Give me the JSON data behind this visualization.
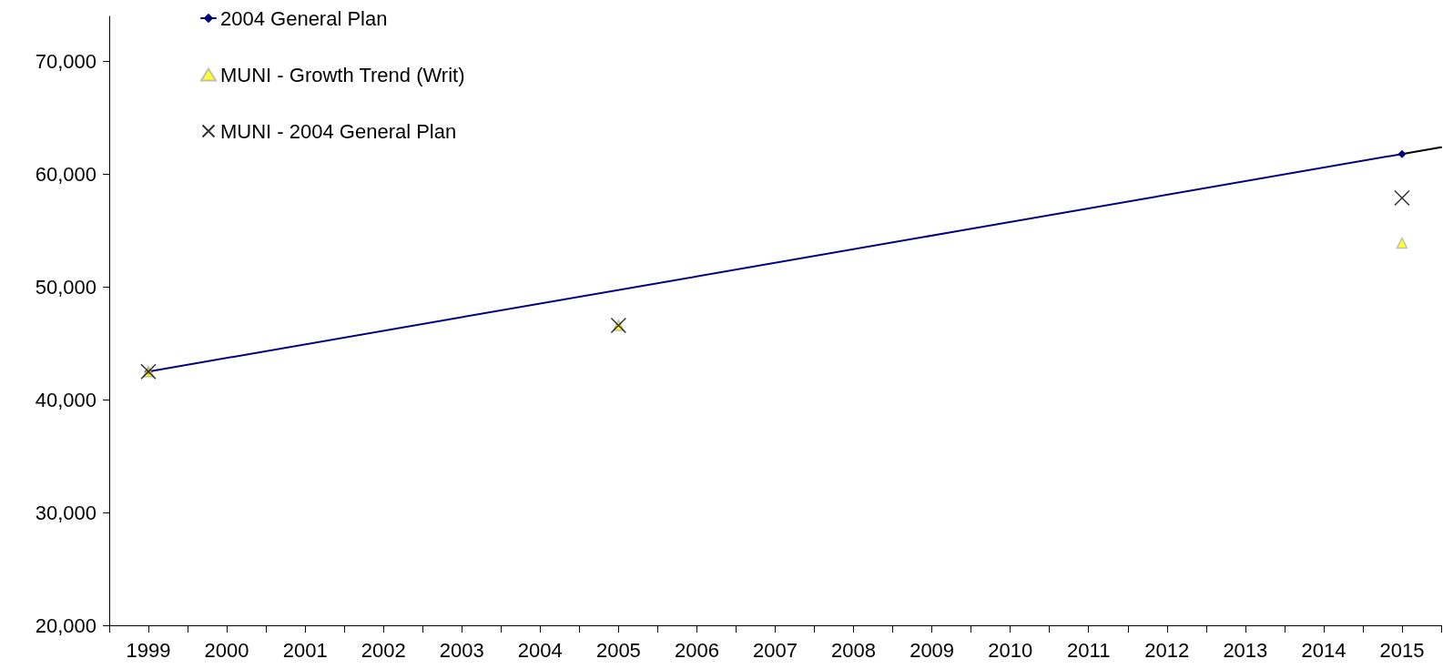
{
  "chart_data": {
    "type": "scatter",
    "xlim": [
      1998.5,
      2015.5
    ],
    "xticks": [
      {
        "value": 1998.5,
        "label": null
      },
      1999,
      {
        "value": 1999.5,
        "label": null
      },
      2000,
      {
        "value": 2000.5,
        "label": null
      },
      2001,
      {
        "value": 2001.5,
        "label": null
      },
      2002,
      {
        "value": 2002.5,
        "label": null
      },
      2003,
      {
        "value": 2003.5,
        "label": null
      },
      2004,
      {
        "value": 2004.5,
        "label": null
      },
      2005,
      {
        "value": 2005.5,
        "label": null
      },
      2006,
      {
        "value": 2006.5,
        "label": null
      },
      2007,
      {
        "value": 2007.5,
        "label": null
      },
      2008,
      {
        "value": 2008.5,
        "label": null
      },
      2009,
      {
        "value": 2009.5,
        "label": null
      },
      2010,
      {
        "value": 2010.5,
        "label": null
      },
      2011,
      {
        "value": 2011.5,
        "label": null
      },
      2012,
      {
        "value": 2012.5,
        "label": null
      },
      2013,
      {
        "value": 2013.5,
        "label": null
      },
      2014,
      {
        "value": 2014.5,
        "label": null
      },
      2015,
      {
        "value": 2015.5,
        "label": null
      }
    ],
    "ylim": [
      20000,
      74000
    ],
    "yticks": [
      {
        "value": 20000,
        "label": "20,000"
      },
      {
        "value": 30000,
        "label": "30,000"
      },
      {
        "value": 40000,
        "label": "40,000"
      },
      {
        "value": 50000,
        "label": "50,000"
      },
      {
        "value": 60000,
        "label": "60,000"
      },
      {
        "value": 70000,
        "label": "70,000"
      }
    ],
    "grid": false,
    "legend": "top left",
    "series": [
      {
        "name": "2004 General Plan",
        "type": "line",
        "color": "#000080",
        "marker": "diamond",
        "line_style": "solid",
        "x": [
          1999,
          2015
        ],
        "values": [
          42500,
          61800
        ]
      },
      {
        "type": "line",
        "color": "#000000",
        "marker": "none",
        "line_style": "solid",
        "x": [
          2015,
          2015.5
        ],
        "values": [
          61800,
          62400
        ]
      },
      {
        "name": "MUNI - Growth Trend (Writ)",
        "color": "#ffff00",
        "marker": "triangle",
        "x": [
          1999,
          2005,
          2015
        ],
        "values": [
          42500,
          46600,
          53900
        ]
      },
      {
        "name": "MUNI - 2004 General Plan",
        "color": "#000000",
        "marker": "cross",
        "x": [
          1999,
          2005,
          2015
        ],
        "values": [
          42500,
          46600,
          57900
        ]
      }
    ]
  }
}
